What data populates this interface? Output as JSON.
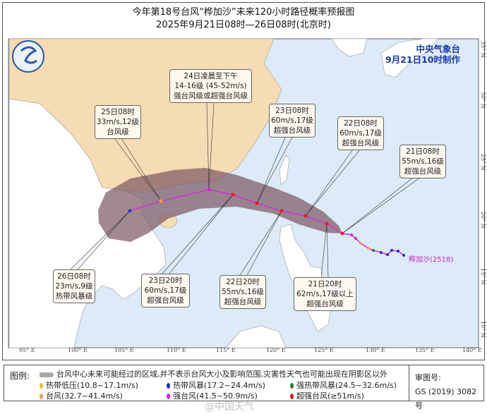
{
  "title": {
    "line1": "今年第18号台风“桦加沙”未来120小时路径概率预报图",
    "line2": "2025年9月21日08时—26日08时(北京时)"
  },
  "issuer": {
    "name": "中央气象台",
    "issued": "9月21日10时制作"
  },
  "storm_label": "桦加沙(2518)",
  "longitudes": [
    "95° E",
    "100° E",
    "105° E",
    "110° E",
    "115° E",
    "120° E",
    "125° E",
    "130° E",
    "135° E",
    "140° E"
  ],
  "latitudes": [
    "35° N",
    "30° N",
    "25° N",
    "20° N",
    "15° N",
    "10° N"
  ],
  "forecast_points": [
    {
      "time": "21日08时",
      "speed": "55m/s,16级",
      "grade": "超强台风级",
      "color": "#e02020"
    },
    {
      "time": "21日20时",
      "speed": "62m/s,17级以上",
      "grade": "超强台风级",
      "color": "#e02020"
    },
    {
      "time": "22日08时",
      "speed": "60m/s,17级",
      "grade": "超强台风级",
      "color": "#e02020"
    },
    {
      "time": "22日20时",
      "speed": "55m/s,16级",
      "grade": "超强台风级",
      "color": "#e02020"
    },
    {
      "time": "23日08时",
      "speed": "60m/s,17级",
      "grade": "超强台风级",
      "color": "#e02020"
    },
    {
      "time": "23日20时",
      "speed": "60m/s,17级",
      "grade": "超强台风级",
      "color": "#e02020"
    },
    {
      "time": "24日凌晨至下午",
      "speed": "14-16级 (45-52m/s)",
      "grade": "强台风级或超强台风级",
      "color": "#e020e0"
    },
    {
      "time": "25日08时",
      "speed": "33m/s,12级",
      "grade": "台风级",
      "color": "#f0a040"
    },
    {
      "time": "26日08时",
      "speed": "23m/s,9级",
      "grade": "热带风暴级",
      "color": "#2040c0"
    }
  ],
  "legend": {
    "label": "图例:",
    "cone_text": "台风中心未来可能经过的区域,并不表示台风大小及影响范围,灾害性天气也可能出现在阴影区以外",
    "items": [
      {
        "label": "热带低压(10.8~17.1m/s)",
        "color": "#f0c020"
      },
      {
        "label": "热带风暴(17.2~24.4m/s)",
        "color": "#2030c0"
      },
      {
        "label": "强热带风暴(24.5~32.6m/s)",
        "color": "#208030"
      },
      {
        "label": "台风(32.7~41.4m/s)",
        "color": "#f0a060"
      },
      {
        "label": "强台风(41.5~50.9m/s)",
        "color": "#e020e0"
      },
      {
        "label": "超强台风(≥51m/s)",
        "color": "#e02020"
      }
    ],
    "review_label": "审图号:",
    "review_no": "GS (2019) 3082号"
  },
  "watermark": "@中国天气",
  "colors": {
    "sea": "#dcebf7",
    "china": "#f6dcb4",
    "other_land": "#ffffff",
    "cone": "#7a5560",
    "track": "#e020e0"
  }
}
